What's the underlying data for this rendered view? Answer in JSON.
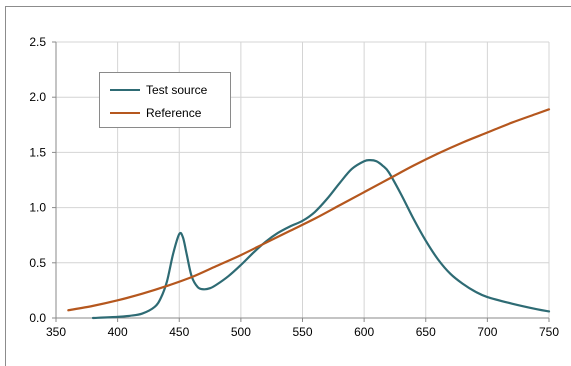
{
  "chart_data": {
    "type": "line",
    "title": "",
    "xlabel": "",
    "ylabel": "",
    "xlim": [
      350,
      750
    ],
    "ylim": [
      0,
      2.5
    ],
    "xticks": [
      350,
      400,
      450,
      500,
      550,
      600,
      650,
      700,
      750
    ],
    "xtick_labels": [
      "350",
      "400",
      "450",
      "500",
      "550",
      "600",
      "650",
      "700",
      "750"
    ],
    "yticks": [
      0,
      0.5,
      1.0,
      1.5,
      2.0,
      2.5
    ],
    "ytick_labels": [
      "0.0",
      "0.5",
      "1.0",
      "1.5",
      "2.0",
      "2.5"
    ],
    "grid": true,
    "legend_placement": "upper-left",
    "series": [
      {
        "name": "Test source",
        "color": "#2e6b74",
        "x": [
          380,
          400,
          410,
          420,
          430,
          435,
          440,
          445,
          450,
          453,
          456,
          460,
          465,
          470,
          475,
          480,
          490,
          500,
          510,
          520,
          530,
          540,
          550,
          560,
          570,
          580,
          590,
          600,
          605,
          610,
          615,
          620,
          630,
          640,
          650,
          660,
          670,
          680,
          690,
          700,
          720,
          740,
          750
        ],
        "y": [
          0.0,
          0.01,
          0.02,
          0.04,
          0.1,
          0.18,
          0.33,
          0.58,
          0.76,
          0.73,
          0.58,
          0.38,
          0.28,
          0.26,
          0.27,
          0.3,
          0.38,
          0.48,
          0.59,
          0.69,
          0.77,
          0.83,
          0.88,
          0.96,
          1.08,
          1.22,
          1.35,
          1.42,
          1.43,
          1.42,
          1.38,
          1.32,
          1.12,
          0.9,
          0.7,
          0.53,
          0.4,
          0.31,
          0.24,
          0.19,
          0.13,
          0.08,
          0.06
        ]
      },
      {
        "name": "Reference",
        "color": "#b5571e",
        "x": [
          360,
          380,
          400,
          420,
          440,
          460,
          480,
          500,
          520,
          540,
          560,
          580,
          600,
          620,
          640,
          660,
          680,
          700,
          720,
          740,
          750
        ],
        "y": [
          0.07,
          0.11,
          0.16,
          0.22,
          0.29,
          0.37,
          0.47,
          0.57,
          0.68,
          0.79,
          0.9,
          1.02,
          1.14,
          1.26,
          1.38,
          1.49,
          1.59,
          1.68,
          1.77,
          1.85,
          1.89
        ]
      }
    ]
  }
}
